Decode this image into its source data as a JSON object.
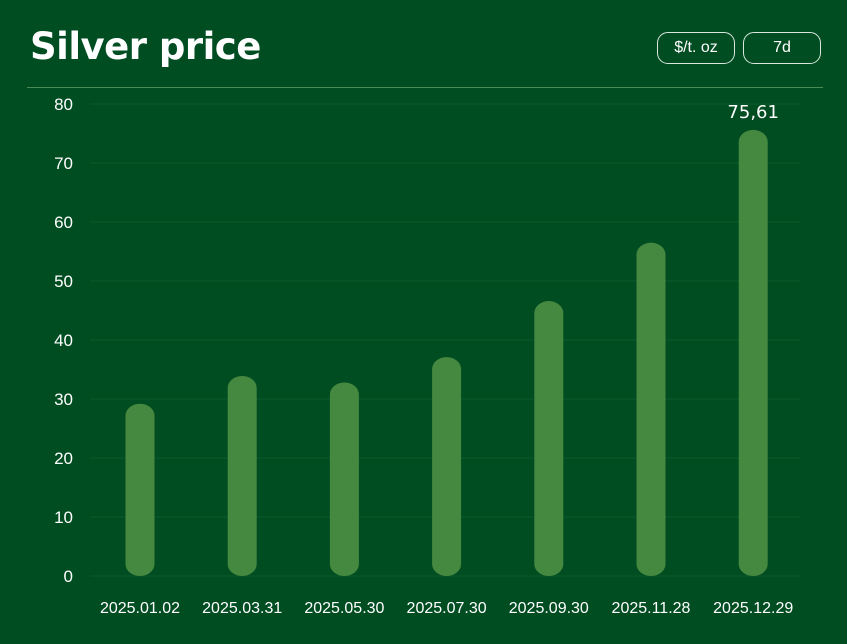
{
  "header": {
    "title": "Silver price",
    "unit_button": "$/t. oz",
    "range_button": "7d"
  },
  "colors": {
    "background": "#004d22",
    "bar": "#45883f",
    "gridline": "#0d5a2b",
    "text": "#ffffff"
  },
  "chart_data": {
    "type": "bar",
    "title": "Silver price",
    "unit": "$/t. oz",
    "categories": [
      "2025.01.02",
      "2025.03.31",
      "2025.05.30",
      "2025.07.30",
      "2025.09.30",
      "2025.11.28",
      "2025.12.29"
    ],
    "values": [
      29.2,
      33.9,
      32.8,
      37.1,
      46.6,
      56.5,
      75.61
    ],
    "value_label": {
      "index": 6,
      "text": "75,61"
    },
    "yticks": [
      0,
      10,
      20,
      30,
      40,
      50,
      60,
      70,
      80
    ],
    "ylim": [
      0,
      80
    ],
    "grid": true,
    "legend": "none"
  }
}
